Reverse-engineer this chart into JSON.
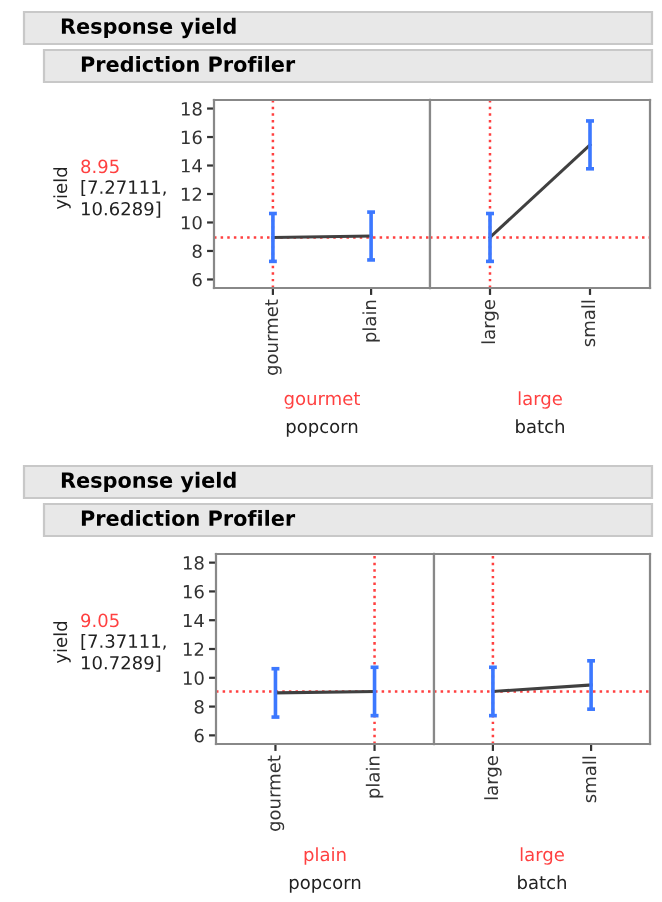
{
  "chart_data": [
    {
      "type": "line",
      "title": "Response yield",
      "subtitle": "Prediction Profiler",
      "ylabel": "yield",
      "xlabel": "popcorn",
      "categories": [
        "gourmet",
        "plain"
      ],
      "values": [
        8.95,
        9.05
      ],
      "errors": [
        [
          7.27,
          10.63
        ],
        [
          7.37,
          10.73
        ]
      ],
      "color": "#404040",
      "ylim": [
        5.4,
        18.6
      ],
      "yticks": [
        6,
        8,
        10,
        12,
        14,
        16,
        18
      ],
      "grid": false,
      "marker": "none",
      "annotations": [
        "[7.27111, 10.6289]"
      ],
      "ref_lines": [
        {
          "axis": "x",
          "value": "gourmet",
          "label": "gourmet",
          "color": "#ff4040",
          "line_style": "dotted"
        },
        {
          "axis": "y",
          "value": 8.95,
          "label": "8.95",
          "color": "#ff4040",
          "line_style": "dotted"
        }
      ]
    },
    {
      "type": "line",
      "xlabel": "batch",
      "categories": [
        "large",
        "small"
      ],
      "values": [
        8.95,
        15.45
      ],
      "errors": [
        [
          7.27,
          10.63
        ],
        [
          13.77,
          17.13
        ]
      ],
      "color": "#404040",
      "ylim": [
        5.4,
        18.6
      ],
      "yticks": [
        6,
        8,
        10,
        12,
        14,
        16,
        18
      ],
      "tick_labels": "x",
      "grid": false,
      "marker": "none",
      "ref_lines": [
        {
          "axis": "x",
          "value": "large",
          "label": "large",
          "color": "#ff4040",
          "line_style": "dotted"
        },
        {
          "axis": "y",
          "value": 8.95,
          "label": null,
          "color": "#ff4040",
          "line_style": "dotted"
        }
      ]
    },
    {
      "type": "line",
      "title": "Response yield",
      "subtitle": "Prediction Profiler",
      "ylabel": "yield",
      "xlabel": "popcorn",
      "categories": [
        "gourmet",
        "plain"
      ],
      "values": [
        8.95,
        9.05
      ],
      "errors": [
        [
          7.27,
          10.63
        ],
        [
          7.37,
          10.73
        ]
      ],
      "color": "#404040",
      "ylim": [
        5.4,
        18.6
      ],
      "yticks": [
        6,
        8,
        10,
        12,
        14,
        16,
        18
      ],
      "grid": false,
      "marker": "none",
      "annotations": [
        "[7.37111, 10.7289]"
      ],
      "ref_lines": [
        {
          "axis": "x",
          "value": "plain",
          "label": "plain",
          "color": "#ff4040",
          "line_style": "dotted"
        },
        {
          "axis": "y",
          "value": 9.05,
          "label": "9.05",
          "color": "#ff4040",
          "line_style": "dotted"
        }
      ]
    },
    {
      "type": "line",
      "xlabel": "batch",
      "categories": [
        "large",
        "small"
      ],
      "values": [
        9.05,
        9.5
      ],
      "errors": [
        [
          7.37,
          10.73
        ],
        [
          7.82,
          11.18
        ]
      ],
      "color": "#404040",
      "ylim": [
        5.4,
        18.6
      ],
      "yticks": [
        6,
        8,
        10,
        12,
        14,
        16,
        18
      ],
      "tick_labels": "x",
      "grid": false,
      "marker": "none",
      "ref_lines": [
        {
          "axis": "x",
          "value": "large",
          "label": "large",
          "color": "#ff4040",
          "line_style": "dotted"
        },
        {
          "axis": "y",
          "value": 9.05,
          "label": null,
          "color": "#ff4040",
          "line_style": "dotted"
        }
      ]
    }
  ]
}
